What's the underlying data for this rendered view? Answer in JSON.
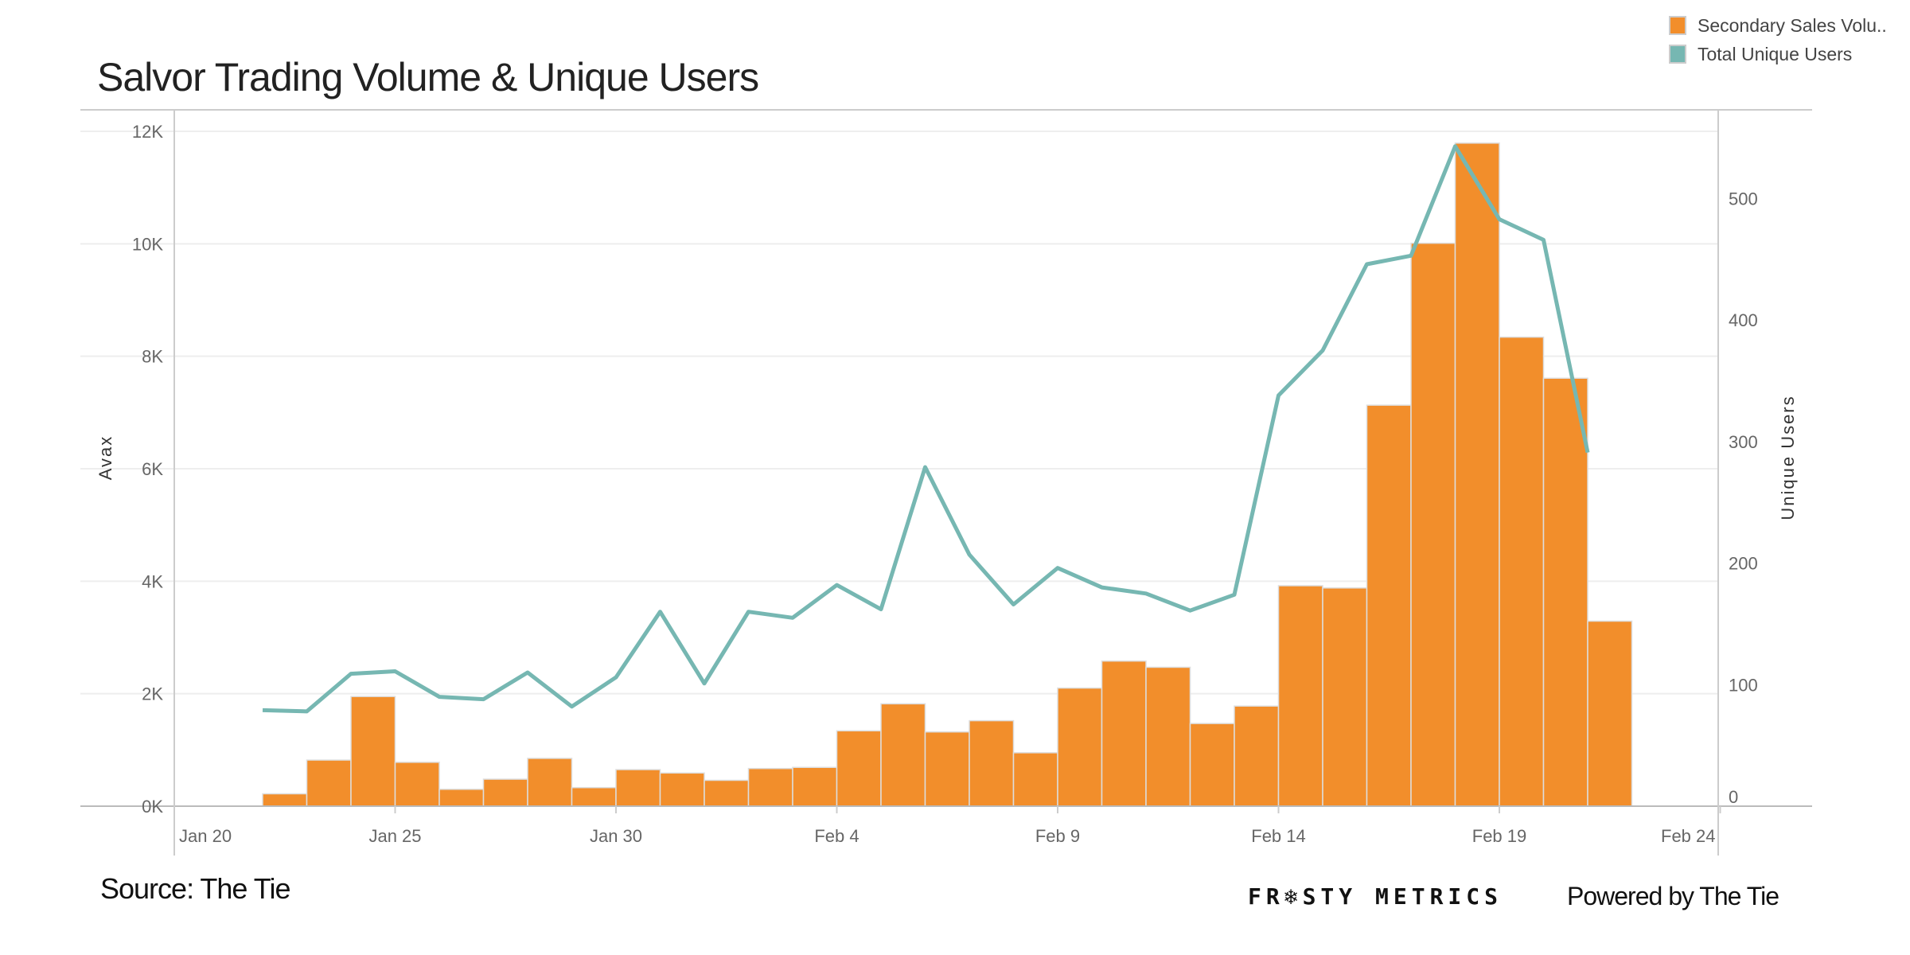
{
  "title": "Salvor Trading Volume & Unique Users",
  "legend": [
    {
      "label": "Secondary Sales Volu..",
      "color": "#f28e2b"
    },
    {
      "label": "Total Unique Users",
      "color": "#76b7b2"
    }
  ],
  "source": "Source: The Tie",
  "footer": {
    "logo": "FR❄STY METRICS",
    "powered_by": "Powered by The Tie"
  },
  "chart_data": {
    "type": "bar+line",
    "title": "Salvor Trading Volume & Unique Users",
    "xlabel": "",
    "ylabel_left": "Avax",
    "ylabel_right": "Unique Users",
    "x_ticks": [
      "Jan 20",
      "Jan 25",
      "Jan 30",
      "Feb 4",
      "Feb 9",
      "Feb 14",
      "Feb 19",
      "Feb 24"
    ],
    "x_tick_days": [
      0,
      5,
      10,
      15,
      20,
      25,
      30,
      35
    ],
    "x_range_days": [
      0,
      35
    ],
    "y_left_ticks": [
      "0K",
      "2K",
      "4K",
      "6K",
      "8K",
      "10K",
      "12K"
    ],
    "y_left_range": [
      0,
      12000
    ],
    "y_right_ticks": [
      "0",
      "100",
      "200",
      "300",
      "400",
      "500"
    ],
    "y_right_range": [
      0,
      555
    ],
    "grid": true,
    "legend_position": "top-right",
    "categories": [
      "Jan 22",
      "Jan 23",
      "Jan 24",
      "Jan 25",
      "Jan 26",
      "Jan 27",
      "Jan 28",
      "Jan 29",
      "Jan 30",
      "Jan 31",
      "Feb 1",
      "Feb 2",
      "Feb 3",
      "Feb 4",
      "Feb 5",
      "Feb 6",
      "Feb 7",
      "Feb 8",
      "Feb 9",
      "Feb 10",
      "Feb 11",
      "Feb 12",
      "Feb 13",
      "Feb 14",
      "Feb 15",
      "Feb 16",
      "Feb 17",
      "Feb 18",
      "Feb 19",
      "Feb 20",
      "Feb 21"
    ],
    "start_day": 2,
    "series": [
      {
        "name": "Secondary Sales Volume",
        "type": "bar",
        "axis": "left",
        "color": "#f28e2b",
        "values": [
          220,
          820,
          1950,
          780,
          300,
          480,
          850,
          330,
          650,
          590,
          460,
          670,
          690,
          1340,
          1820,
          1320,
          1520,
          950,
          2100,
          2580,
          2470,
          1470,
          1780,
          3920,
          3880,
          7130,
          10010,
          11790,
          8340,
          7610,
          3290
        ]
      },
      {
        "name": "Total Unique Users",
        "type": "line",
        "axis": "right",
        "color": "#76b7b2",
        "values": [
          79,
          78,
          109,
          111,
          90,
          88,
          110,
          82,
          106,
          160,
          101,
          160,
          155,
          182,
          162,
          279,
          207,
          166,
          196,
          180,
          175,
          161,
          174,
          338,
          375,
          446,
          453,
          543,
          483,
          466,
          291
        ]
      }
    ]
  }
}
